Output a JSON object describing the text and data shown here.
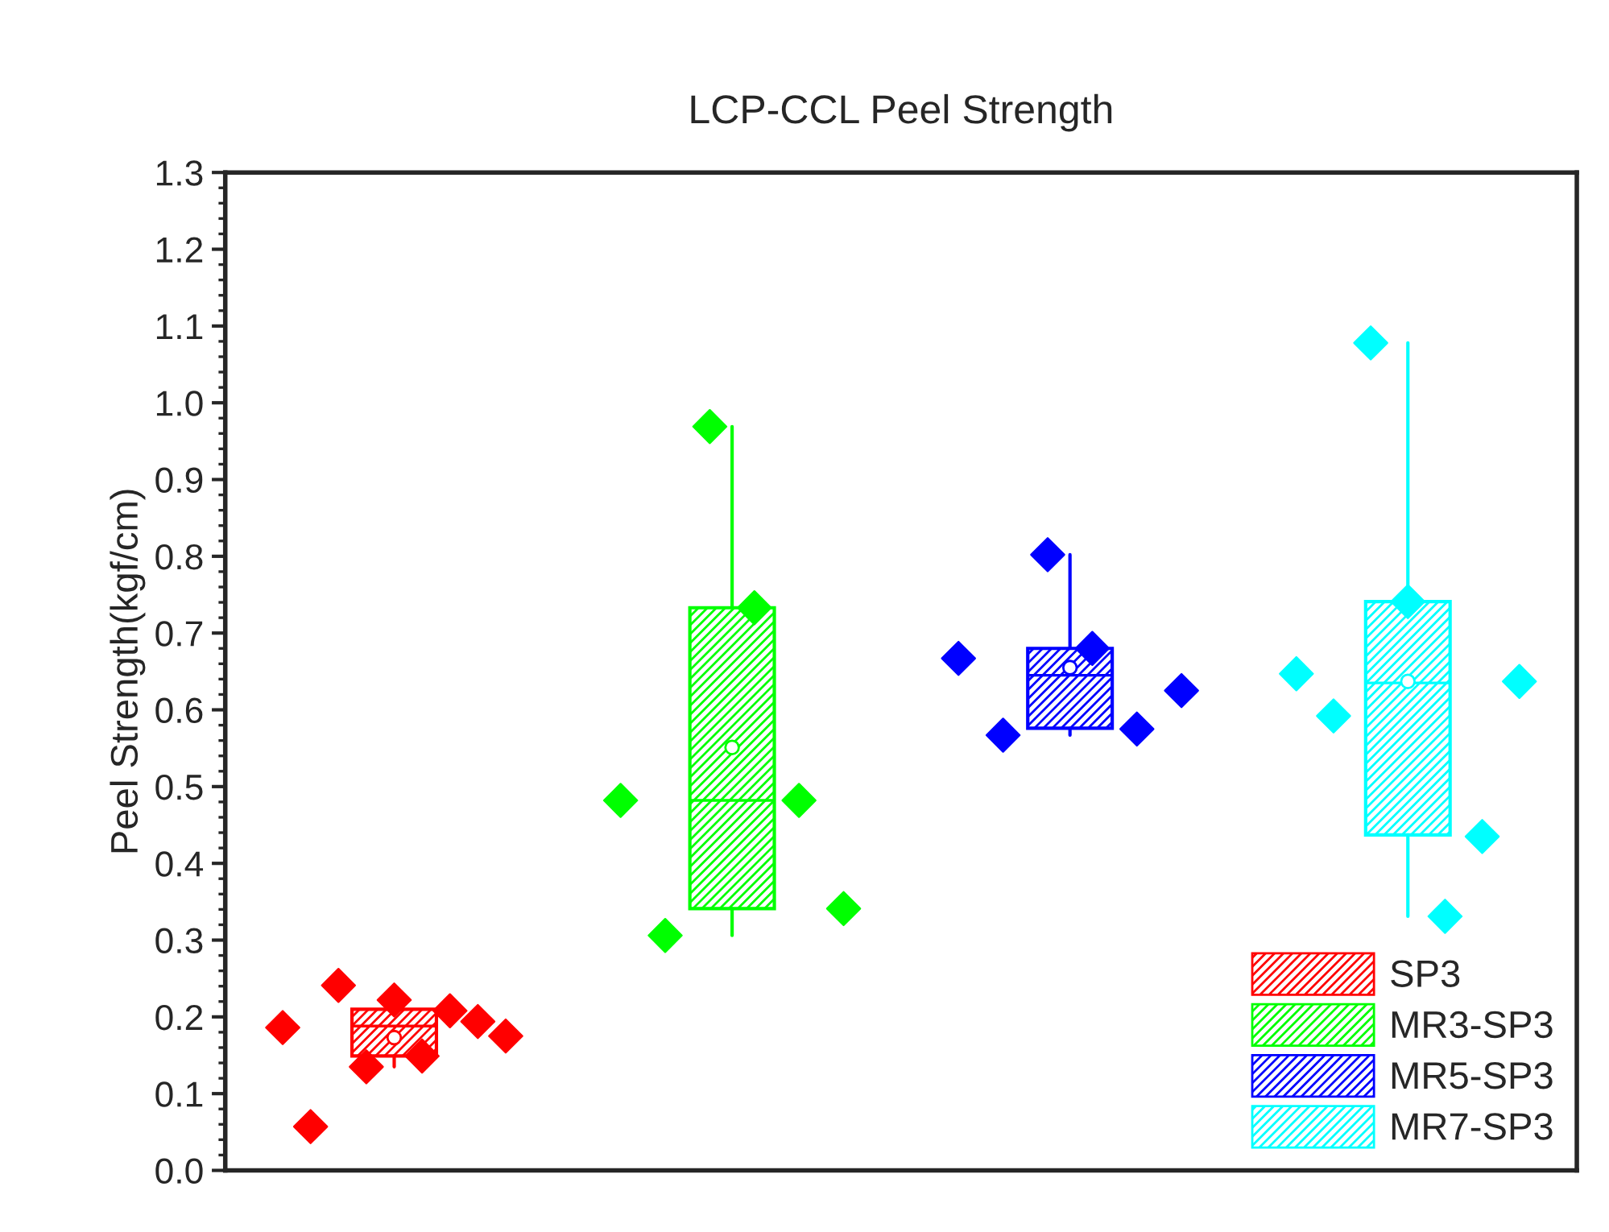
{
  "chart_data": {
    "type": "box",
    "title": "LCP-CCL Peel Strength",
    "ylabel": "Peel Strength(kgf/cm)",
    "categories": [
      null,
      null,
      null,
      null
    ],
    "ylim": [
      0,
      1.3
    ],
    "yticks": [
      {
        "value": 0,
        "label": "0.0"
      },
      0.1,
      0.2,
      0.3,
      0.4,
      0.5,
      0.6,
      0.7,
      0.8,
      0.9,
      {
        "value": 1,
        "label": "1.0"
      },
      1.1,
      1.2,
      1.3
    ],
    "tick_labels": "y",
    "grid": false,
    "legend": "bottom right",
    "marker": "diamond",
    "series": [
      {
        "name": "SP3",
        "color": "#ff0000",
        "boxes": [
          {
            "low": 0.135,
            "q1": 0.149,
            "median": 0.188,
            "q3": 0.21,
            "high": 0.241,
            "mean": 0.173
          },
          null,
          null,
          null
        ]
      },
      {
        "name": "MR3-SP3",
        "color": "#00ff00",
        "boxes": [
          null,
          {
            "low": 0.306,
            "q1": 0.341,
            "median": 0.482,
            "q3": 0.733,
            "high": 0.969,
            "mean": 0.551
          },
          null,
          null
        ]
      },
      {
        "name": "MR5-SP3",
        "color": "#0000ff",
        "boxes": [
          null,
          null,
          {
            "low": 0.567,
            "q1": 0.576,
            "median": 0.645,
            "q3": 0.68,
            "high": 0.802,
            "mean": 0.655
          },
          null
        ]
      },
      {
        "name": "MR7-SP3",
        "color": "#00ffff",
        "boxes": [
          null,
          null,
          null,
          {
            "low": 0.331,
            "q1": 0.437,
            "median": 0.635,
            "q3": 0.741,
            "high": 1.078,
            "mean": 0.637
          }
        ]
      },
      {
        "type": "scatter",
        "colors": [
          "#ff0000",
          "#00ff00",
          "#0000ff",
          "#00ffff"
        ],
        "values": [
          0.186,
          0.482,
          0.667,
          0.647
        ]
      },
      {
        "type": "scatter",
        "colors": [
          "#ff0000",
          "#00ff00",
          "#0000ff",
          "#00ffff"
        ],
        "values": [
          0.057,
          0.306,
          0.567,
          0.592
        ]
      },
      {
        "type": "scatter",
        "colors": [
          "#ff0000",
          "#00ff00",
          "#0000ff",
          "#00ffff"
        ],
        "values": [
          0.241,
          0.969,
          0.802,
          1.078
        ]
      },
      {
        "type": "scatter",
        "colors": [
          "#ff0000",
          "#00ff00",
          "#0000ff",
          "#00ffff"
        ],
        "values": [
          0.135,
          0.733,
          0.68,
          0.741
        ]
      },
      {
        "type": "scatter",
        "colors": [
          "#ff0000",
          "#00ff00",
          "#0000ff",
          "#00ffff"
        ],
        "values": [
          0.222,
          0.482,
          0.575,
          0.331
        ]
      },
      {
        "type": "scatter",
        "colors": [
          "#ff0000",
          "#00ff00",
          "#0000ff",
          "#00ffff"
        ],
        "values": [
          0.149,
          0.341,
          0.625,
          0.435
        ]
      },
      {
        "type": "scatter",
        "colors": [
          "#ff0000",
          "#00ff00",
          "#0000ff",
          "#00ffff"
        ],
        "values": [
          0.208,
          null,
          null,
          0.637
        ]
      },
      {
        "type": "scatter",
        "colors": [
          "#ff0000",
          "#00ff00",
          "#0000ff",
          "#00ffff"
        ],
        "values": [
          0.194,
          null,
          null,
          null
        ]
      },
      {
        "type": "scatter",
        "colors": [
          "#ff0000",
          "#00ff00",
          "#0000ff",
          "#00ffff"
        ],
        "values": [
          0.175,
          null,
          null,
          null
        ]
      }
    ]
  }
}
